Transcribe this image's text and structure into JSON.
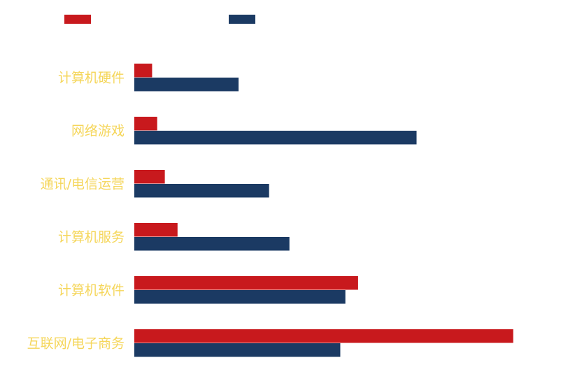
{
  "chart_data": {
    "type": "bar",
    "orientation": "horizontal",
    "title": "",
    "xlabel": "",
    "ylabel": "",
    "categories": [
      "计算机硬件",
      "网络游戏",
      "通讯/电信运营",
      "计算机服务",
      "计算机软件",
      "互联网/电子商务"
    ],
    "series": [
      {
        "name": "",
        "color": "#c8191d",
        "values": [
          3.5,
          4.5,
          6.0,
          8.5,
          44.0,
          74.5
        ]
      },
      {
        "name": "",
        "color": "#1b3a63",
        "values": [
          20.5,
          55.5,
          26.5,
          30.5,
          41.5,
          40.5
        ]
      }
    ],
    "xlim": [
      0,
      85
    ],
    "grid": false,
    "legend_position": "top-left",
    "label_color": "#f5d65a"
  }
}
